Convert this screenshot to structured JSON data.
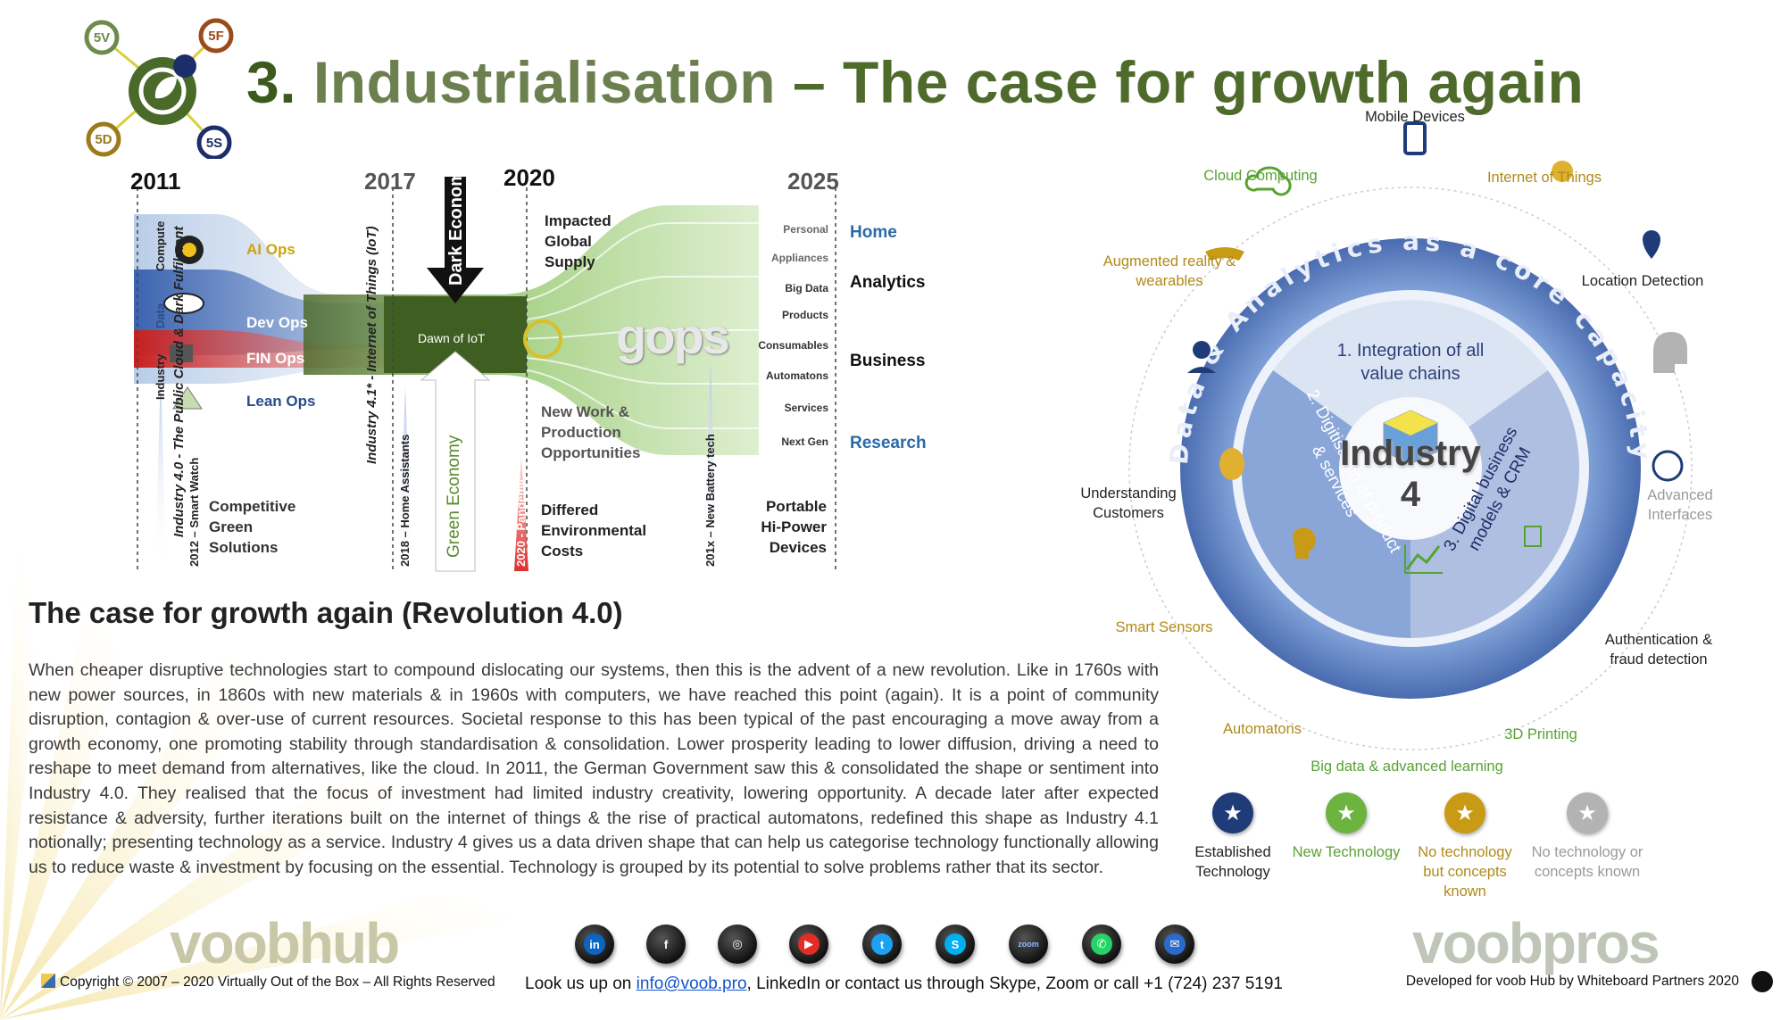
{
  "header": {
    "title_num": "3.",
    "title_main": "Industrialisation",
    "title_tail": "– The case for growth again",
    "logo_badges": [
      "5V",
      "5F",
      "5D",
      "5S"
    ]
  },
  "timeline": {
    "years": [
      "2011",
      "2017",
      "2020",
      "2025"
    ],
    "ops": [
      "AI Ops",
      "Dev Ops",
      "FIN Ops",
      "Lean Ops"
    ],
    "ops_tags": [
      "Compute",
      "Data",
      "Industry"
    ],
    "vertical_labels": {
      "public_cloud": "Industry 4.0 - The Public Cloud & Dark Fulfilment",
      "smart_watch": "2012 – Smart Watch",
      "iot": "Industry 4.1* - Internet of Things (IoT)",
      "home_assistants": "2018 – Home Assistants",
      "dark_economy": "Dark Economy",
      "green_economy": "Green Economy",
      "pandemic": "2020 - Pandemic",
      "battery": "201x – New Battery tech"
    },
    "dawn_of_iot": "Dawn of IoT",
    "gops": "gops",
    "impacted": [
      "Impacted",
      "Global",
      "Supply"
    ],
    "new_work": [
      "New Work &",
      "Production",
      "Opportunities"
    ],
    "differed": [
      "Differed",
      "Environmental",
      "Costs"
    ],
    "competitive": [
      "Competitive",
      "Green",
      "Solutions"
    ],
    "portable": [
      "Portable",
      "Hi-Power",
      "Devices"
    ],
    "stream_items": [
      "Personal",
      "Appliances",
      "Big Data",
      "Products",
      "Consumables",
      "Automatons",
      "Services",
      "Next Gen"
    ],
    "categories": [
      "Home",
      "Analytics",
      "Business",
      "Research"
    ]
  },
  "section": {
    "heading": "The case for growth again (Revolution 4.0)",
    "body": "When cheaper disruptive technologies start to compound dislocating our systems, then this is the advent of a new revolution. Like in 1760s with new power sources, in 1860s with new materials & in 1960s with computers, we have reached this point (again). It is a point of community disruption, contagion & over-use of current resources. Societal response to this has been typical of the past encouraging a move away from a growth economy, one promoting stability through standardisation & consolidation. Lower prosperity leading to lower diffusion, driving a need to reshape to meet demand from alternatives, like the cloud. In 2011, the German Government saw this & consolidated the shape or sentiment into Industry 4.0. They realised that the focus of investment had limited industry creativity, lowering opportunity. A decade later after expected resistance & adversity, further iterations built on the internet of things & the rise of practical automatons, redefined this shape as Industry 4.1 notionally; presenting technology as a service. Industry 4 gives us a data driven shape that can help us categorise technology functionally allowing us to reduce waste & investment by focusing on the essential. Technology is grouped by its potential to solve problems rather that its sector."
  },
  "wheel": {
    "center_title": "Industry",
    "center_num": "4",
    "ring_text": "Data & Analytics as a core capacity",
    "segments": [
      "1. Integration of all value chains",
      "2. Digitisation of product & services",
      "3. Digital business models & CRM"
    ],
    "nodes": {
      "mobile": "Mobile Devices",
      "cloud": "Cloud Computing",
      "iot": "Internet of Things",
      "ar": "Augmented reality & wearables",
      "location": "Location Detection",
      "understanding": "Understanding Customers",
      "interfaces": "Advanced Interfaces",
      "sensors": "Smart Sensors",
      "auth": "Authentication & fraud detection",
      "automatons": "Automatons",
      "printing": "3D Printing",
      "bigdata": "Big data & advanced learning"
    },
    "colors": {
      "established": "#1f3c78",
      "new": "#58a232",
      "gold": "#c99a15",
      "grey": "#a8a8a8",
      "ring": "#5b7fc0"
    }
  },
  "legend": [
    {
      "label": "Established Technology",
      "color": "#1f3c78"
    },
    {
      "label": "New Technology",
      "color": "#6cb33f"
    },
    {
      "label": "No technology but concepts known",
      "color": "#c99a15"
    },
    {
      "label": "No technology or concepts known",
      "color": "#b3b3b3"
    }
  ],
  "footer": {
    "brand_left": "voobhub",
    "brand_right": "voobpros",
    "copyright": "Copyright © 2007 – 2020 Virtually Out of the Box – All Rights Reserved",
    "contact_prefix": "Look us up on ",
    "contact_email": "info@voob.pro",
    "contact_suffix": ", LinkedIn or contact us through Skype, Zoom or call +1 (724) 237 5191",
    "credit": "Developed for voob Hub by Whiteboard Partners 2020",
    "social": [
      "in",
      "f",
      "◎",
      "▶",
      "t",
      "S",
      "zoom",
      "✆",
      "✉"
    ]
  }
}
